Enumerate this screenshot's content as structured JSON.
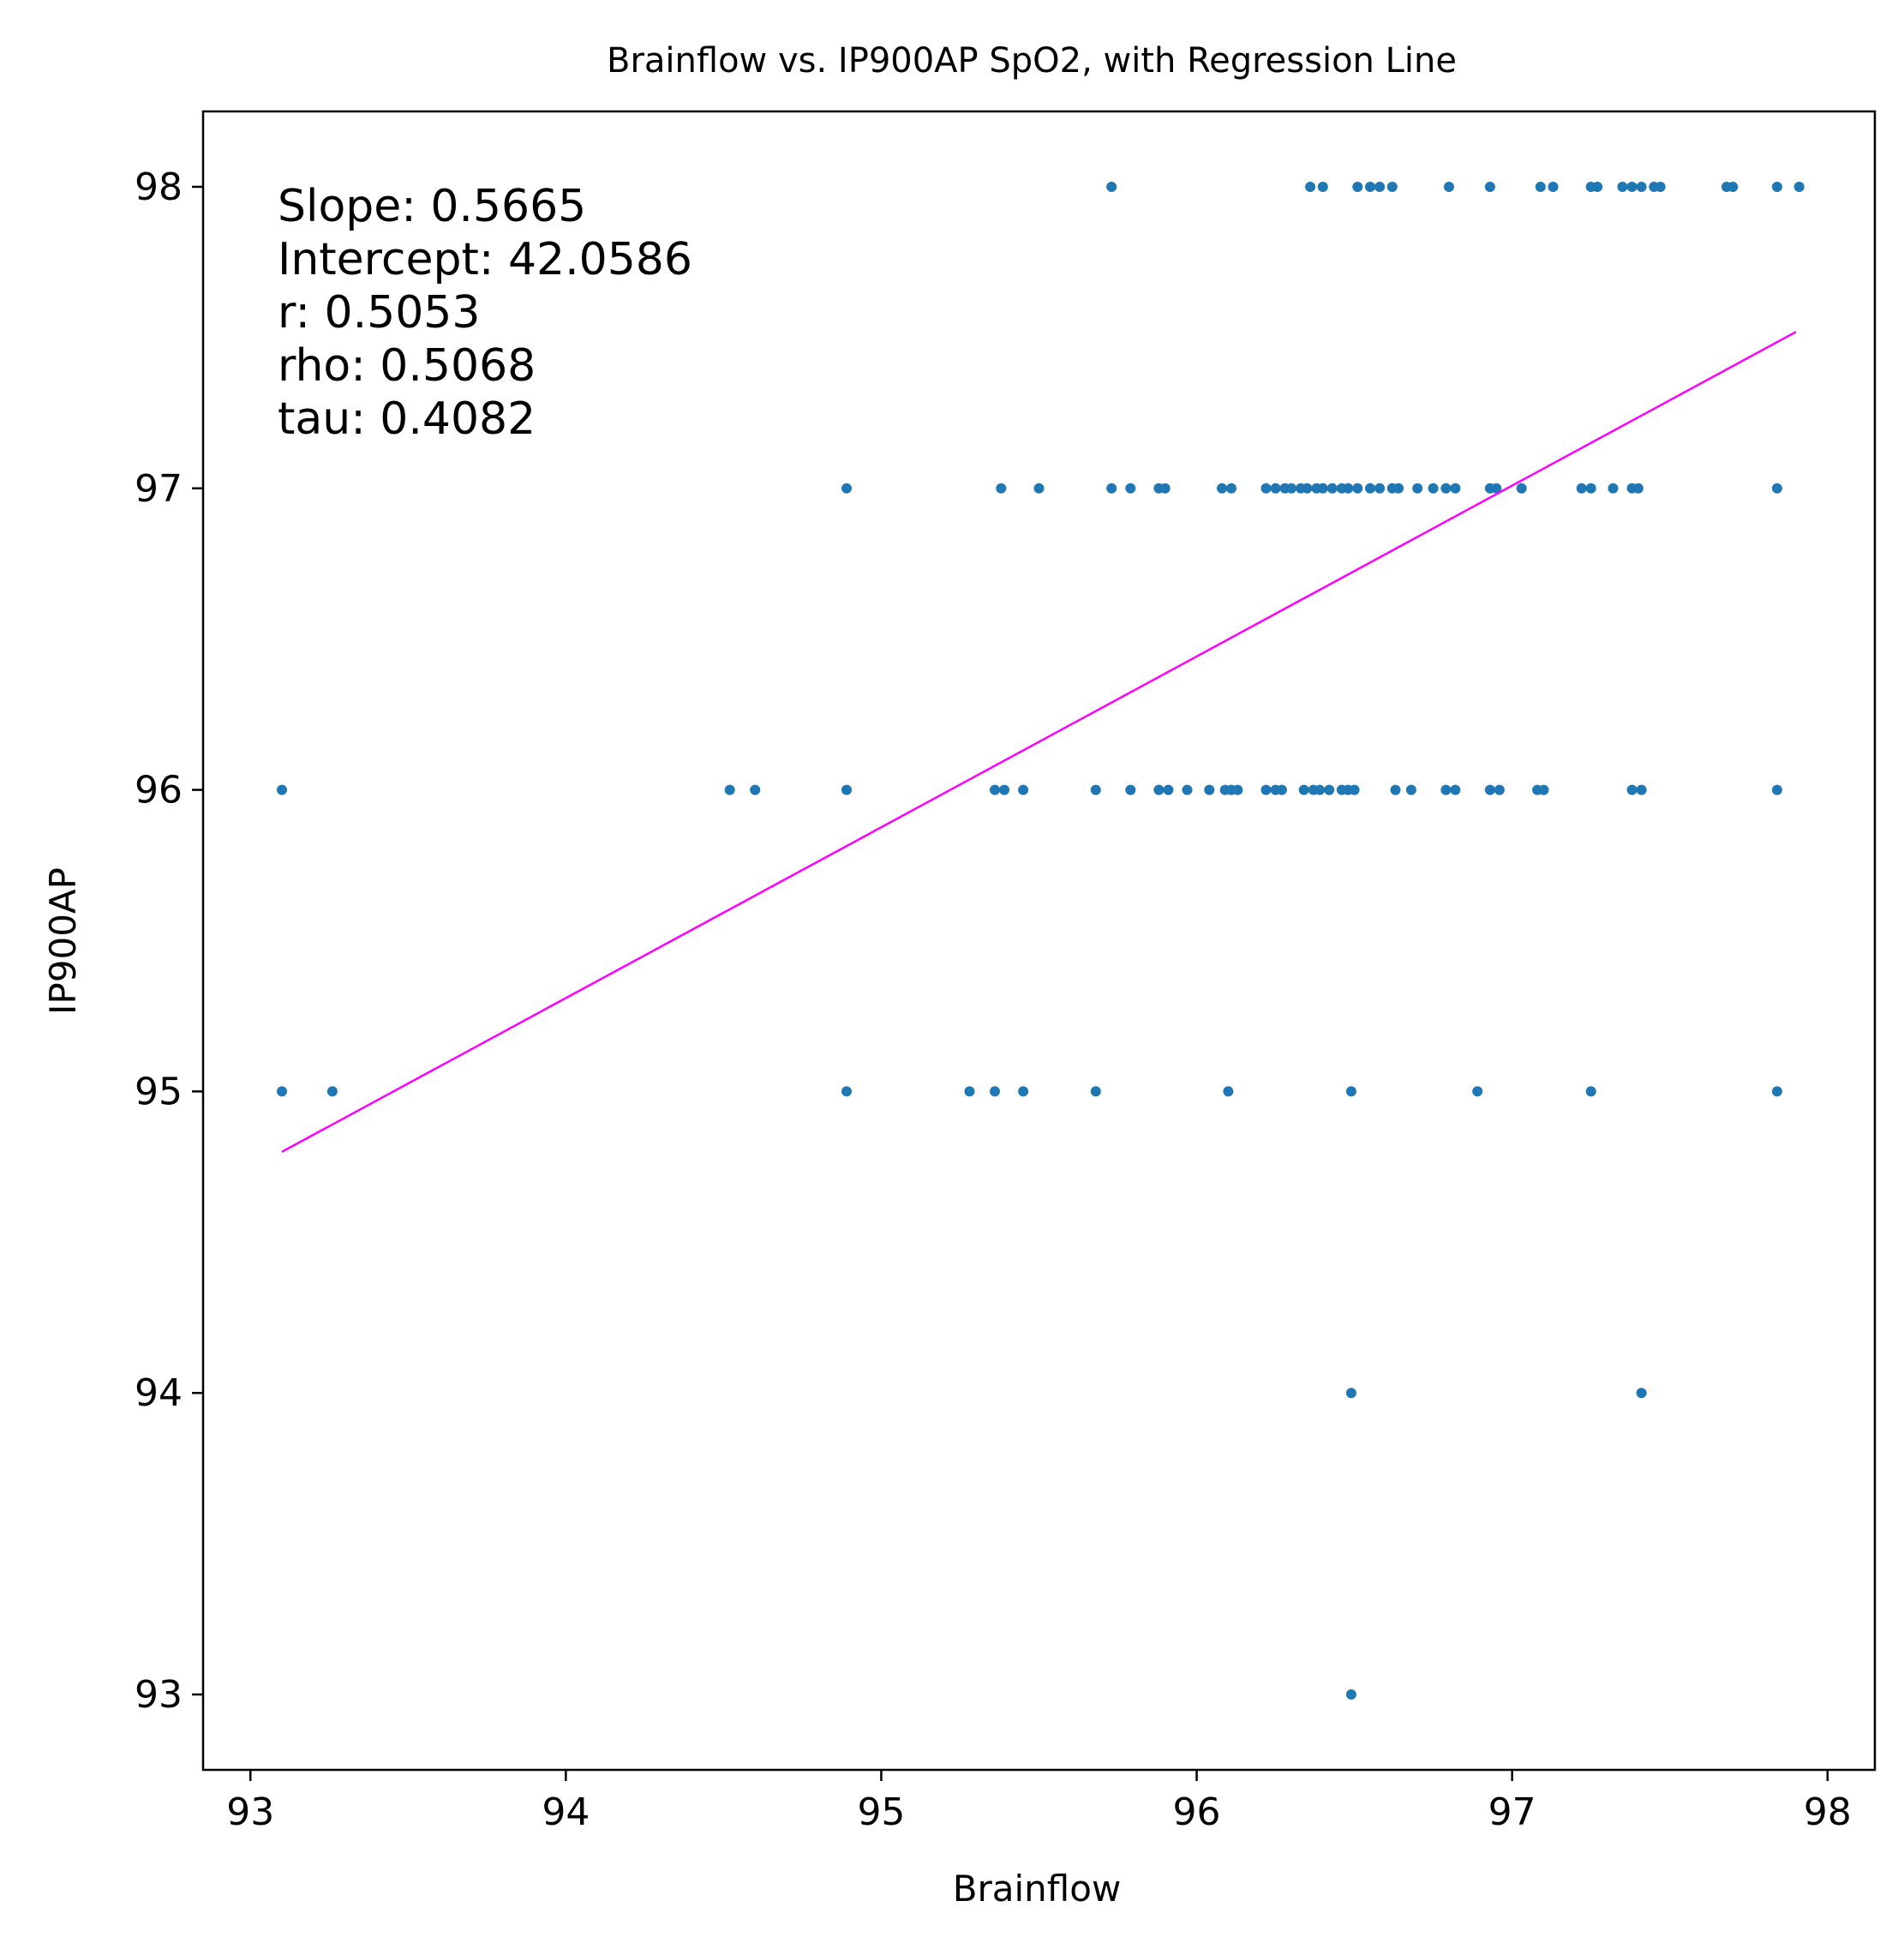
{
  "chart_data": {
    "type": "scatter",
    "title": "Brainflow vs. IP900AP SpO2, with Regression Line",
    "xlabel": "Brainflow",
    "ylabel": "IP900AP",
    "xlim": [
      92.85,
      98.15
    ],
    "ylim": [
      92.75,
      98.25
    ],
    "x_ticks": [
      "93",
      "94",
      "95",
      "96",
      "97",
      "98"
    ],
    "y_ticks": [
      "93",
      "94",
      "95",
      "96",
      "97",
      "98"
    ],
    "grid": false,
    "point_color": "#1f77b4",
    "line_color": "#ff00ff",
    "regression": {
      "slope": 0.5665,
      "intercept": 42.0586,
      "x_range": [
        93.1,
        97.9
      ]
    },
    "annotation": [
      "Slope: 0.5665",
      "Intercept: 42.0586",
      "r: 0.5053",
      "rho: 0.5068",
      "tau: 0.4082"
    ],
    "points": [
      [
        95.73,
        98
      ],
      [
        96.36,
        98
      ],
      [
        96.4,
        98
      ],
      [
        96.51,
        98
      ],
      [
        96.55,
        98
      ],
      [
        96.58,
        98
      ],
      [
        96.62,
        98
      ],
      [
        96.8,
        98
      ],
      [
        96.93,
        98
      ],
      [
        97.09,
        98
      ],
      [
        97.13,
        98
      ],
      [
        97.25,
        98
      ],
      [
        97.27,
        98
      ],
      [
        97.35,
        98
      ],
      [
        97.38,
        98
      ],
      [
        97.41,
        98
      ],
      [
        97.45,
        98
      ],
      [
        97.47,
        98
      ],
      [
        97.68,
        98
      ],
      [
        97.7,
        98
      ],
      [
        97.84,
        98
      ],
      [
        97.91,
        98
      ],
      [
        94.89,
        97
      ],
      [
        95.38,
        97
      ],
      [
        95.5,
        97
      ],
      [
        95.73,
        97
      ],
      [
        95.79,
        97
      ],
      [
        95.88,
        97
      ],
      [
        95.9,
        97
      ],
      [
        96.08,
        97
      ],
      [
        96.11,
        97
      ],
      [
        96.22,
        97
      ],
      [
        96.25,
        97
      ],
      [
        96.28,
        97
      ],
      [
        96.3,
        97
      ],
      [
        96.33,
        97
      ],
      [
        96.35,
        97
      ],
      [
        96.38,
        97
      ],
      [
        96.4,
        97
      ],
      [
        96.43,
        97
      ],
      [
        96.46,
        97
      ],
      [
        96.48,
        97
      ],
      [
        96.51,
        97
      ],
      [
        96.55,
        97
      ],
      [
        96.58,
        97
      ],
      [
        96.62,
        97
      ],
      [
        96.64,
        97
      ],
      [
        96.7,
        97
      ],
      [
        96.75,
        97
      ],
      [
        96.79,
        97
      ],
      [
        96.82,
        97
      ],
      [
        96.93,
        97
      ],
      [
        96.95,
        97
      ],
      [
        97.03,
        97
      ],
      [
        97.22,
        97
      ],
      [
        97.25,
        97
      ],
      [
        97.32,
        97
      ],
      [
        97.38,
        97
      ],
      [
        97.4,
        97
      ],
      [
        97.84,
        97
      ],
      [
        93.1,
        96
      ],
      [
        94.52,
        96
      ],
      [
        94.6,
        96
      ],
      [
        94.89,
        96
      ],
      [
        95.36,
        96
      ],
      [
        95.39,
        96
      ],
      [
        95.45,
        96
      ],
      [
        95.68,
        96
      ],
      [
        95.79,
        96
      ],
      [
        95.88,
        96
      ],
      [
        95.91,
        96
      ],
      [
        95.97,
        96
      ],
      [
        96.04,
        96
      ],
      [
        96.09,
        96
      ],
      [
        96.11,
        96
      ],
      [
        96.13,
        96
      ],
      [
        96.22,
        96
      ],
      [
        96.25,
        96
      ],
      [
        96.27,
        96
      ],
      [
        96.34,
        96
      ],
      [
        96.37,
        96
      ],
      [
        96.39,
        96
      ],
      [
        96.42,
        96
      ],
      [
        96.46,
        96
      ],
      [
        96.48,
        96
      ],
      [
        96.5,
        96
      ],
      [
        96.63,
        96
      ],
      [
        96.68,
        96
      ],
      [
        96.79,
        96
      ],
      [
        96.82,
        96
      ],
      [
        96.93,
        96
      ],
      [
        96.96,
        96
      ],
      [
        97.08,
        96
      ],
      [
        97.1,
        96
      ],
      [
        97.38,
        96
      ],
      [
        97.41,
        96
      ],
      [
        97.84,
        96
      ],
      [
        93.1,
        95
      ],
      [
        93.26,
        95
      ],
      [
        94.89,
        95
      ],
      [
        95.28,
        95
      ],
      [
        95.36,
        95
      ],
      [
        95.45,
        95
      ],
      [
        95.68,
        95
      ],
      [
        96.1,
        95
      ],
      [
        96.49,
        95
      ],
      [
        96.89,
        95
      ],
      [
        97.25,
        95
      ],
      [
        97.84,
        95
      ],
      [
        96.49,
        94
      ],
      [
        97.41,
        94
      ],
      [
        96.49,
        93
      ]
    ]
  }
}
